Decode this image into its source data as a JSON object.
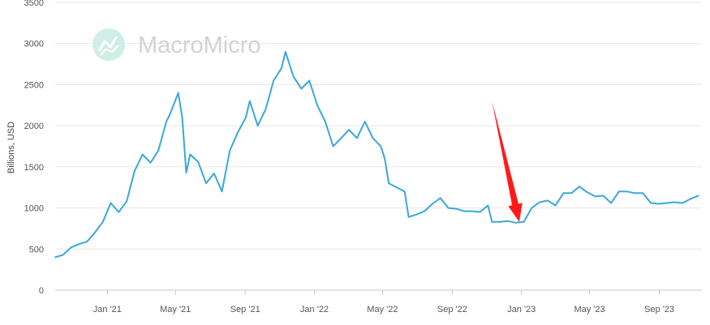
{
  "watermark": {
    "text": "MacroMicro",
    "icon": "macromicro-logo-icon"
  },
  "chart_data": {
    "type": "line",
    "ylabel": "Billions, USD",
    "xlabel": "",
    "ylim": [
      0,
      3500
    ],
    "yticks": [
      0,
      500,
      1000,
      1500,
      2000,
      2500,
      3000,
      3500
    ],
    "xlim": [
      "2020-10-01",
      "2023-11-15"
    ],
    "xticks": [
      {
        "date": "2021-01-01",
        "label": "Jan '21"
      },
      {
        "date": "2021-05-01",
        "label": "May '21"
      },
      {
        "date": "2021-09-01",
        "label": "Sep '21"
      },
      {
        "date": "2022-01-01",
        "label": "Jan '22"
      },
      {
        "date": "2022-05-01",
        "label": "May '22"
      },
      {
        "date": "2022-09-01",
        "label": "Sep '22"
      },
      {
        "date": "2023-01-01",
        "label": "Jan '23"
      },
      {
        "date": "2023-05-01",
        "label": "May '23"
      },
      {
        "date": "2023-09-01",
        "label": "Sep '23"
      }
    ],
    "grid": true,
    "series": [
      {
        "color": "#3aa8d8",
        "points": [
          [
            "2020-10-01",
            400
          ],
          [
            "2020-10-15",
            430
          ],
          [
            "2020-10-29",
            520
          ],
          [
            "2020-11-12",
            560
          ],
          [
            "2020-11-26",
            590
          ],
          [
            "2020-12-10",
            700
          ],
          [
            "2020-12-24",
            830
          ],
          [
            "2021-01-07",
            1060
          ],
          [
            "2021-01-21",
            950
          ],
          [
            "2021-02-04",
            1080
          ],
          [
            "2021-02-18",
            1450
          ],
          [
            "2021-03-04",
            1650
          ],
          [
            "2021-03-18",
            1550
          ],
          [
            "2021-04-01",
            1700
          ],
          [
            "2021-04-15",
            2050
          ],
          [
            "2021-04-22",
            2150
          ],
          [
            "2021-05-06",
            2400
          ],
          [
            "2021-05-13",
            2100
          ],
          [
            "2021-05-20",
            1430
          ],
          [
            "2021-05-27",
            1650
          ],
          [
            "2021-06-10",
            1560
          ],
          [
            "2021-06-24",
            1300
          ],
          [
            "2021-07-08",
            1420
          ],
          [
            "2021-07-22",
            1200
          ],
          [
            "2021-08-05",
            1700
          ],
          [
            "2021-08-19",
            1920
          ],
          [
            "2021-09-02",
            2100
          ],
          [
            "2021-09-09",
            2300
          ],
          [
            "2021-09-23",
            2000
          ],
          [
            "2021-10-07",
            2200
          ],
          [
            "2021-10-21",
            2550
          ],
          [
            "2021-11-04",
            2700
          ],
          [
            "2021-11-11",
            2900
          ],
          [
            "2021-11-25",
            2600
          ],
          [
            "2021-12-09",
            2450
          ],
          [
            "2021-12-23",
            2550
          ],
          [
            "2022-01-06",
            2250
          ],
          [
            "2022-01-20",
            2050
          ],
          [
            "2022-02-03",
            1750
          ],
          [
            "2022-02-17",
            1850
          ],
          [
            "2022-03-03",
            1950
          ],
          [
            "2022-03-17",
            1850
          ],
          [
            "2022-03-31",
            2050
          ],
          [
            "2022-04-14",
            1850
          ],
          [
            "2022-04-28",
            1750
          ],
          [
            "2022-05-05",
            1600
          ],
          [
            "2022-05-12",
            1300
          ],
          [
            "2022-05-26",
            1250
          ],
          [
            "2022-06-09",
            1200
          ],
          [
            "2022-06-16",
            890
          ],
          [
            "2022-06-30",
            920
          ],
          [
            "2022-07-14",
            960
          ],
          [
            "2022-07-28",
            1050
          ],
          [
            "2022-08-11",
            1120
          ],
          [
            "2022-08-25",
            1000
          ],
          [
            "2022-09-08",
            990
          ],
          [
            "2022-09-22",
            960
          ],
          [
            "2022-10-06",
            960
          ],
          [
            "2022-10-20",
            950
          ],
          [
            "2022-11-03",
            1030
          ],
          [
            "2022-11-10",
            830
          ],
          [
            "2022-11-24",
            830
          ],
          [
            "2022-12-08",
            840
          ],
          [
            "2022-12-22",
            820
          ],
          [
            "2023-01-05",
            830
          ],
          [
            "2023-01-19",
            1000
          ],
          [
            "2023-02-02",
            1070
          ],
          [
            "2023-02-16",
            1090
          ],
          [
            "2023-03-02",
            1030
          ],
          [
            "2023-03-16",
            1180
          ],
          [
            "2023-03-30",
            1180
          ],
          [
            "2023-04-13",
            1260
          ],
          [
            "2023-04-27",
            1190
          ],
          [
            "2023-05-11",
            1140
          ],
          [
            "2023-05-25",
            1150
          ],
          [
            "2023-06-08",
            1060
          ],
          [
            "2023-06-22",
            1200
          ],
          [
            "2023-07-06",
            1200
          ],
          [
            "2023-07-20",
            1180
          ],
          [
            "2023-08-03",
            1180
          ],
          [
            "2023-08-17",
            1060
          ],
          [
            "2023-08-31",
            1050
          ],
          [
            "2023-09-14",
            1060
          ],
          [
            "2023-09-28",
            1070
          ],
          [
            "2023-10-12",
            1060
          ],
          [
            "2023-10-26",
            1110
          ],
          [
            "2023-11-09",
            1150
          ]
        ]
      }
    ],
    "annotations": [
      {
        "type": "arrow",
        "color": "#ff1a1a",
        "from": [
          "2022-11-10",
          2300
        ],
        "to": [
          "2022-12-28",
          830
        ]
      }
    ]
  }
}
